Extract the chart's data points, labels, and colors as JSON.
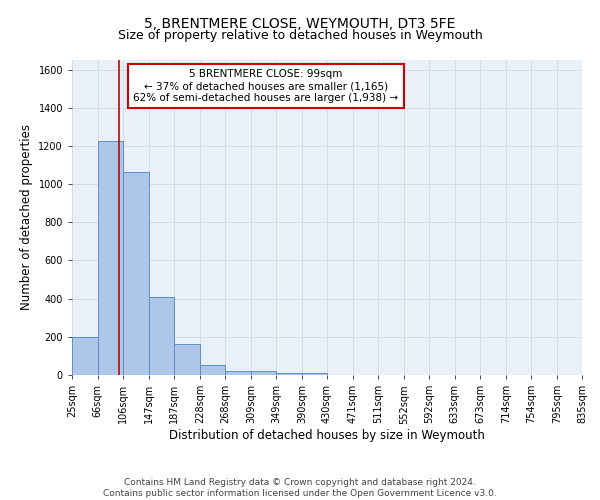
{
  "title": "5, BRENTMERE CLOSE, WEYMOUTH, DT3 5FE",
  "subtitle": "Size of property relative to detached houses in Weymouth",
  "xlabel": "Distribution of detached houses by size in Weymouth",
  "ylabel": "Number of detached properties",
  "footer_line1": "Contains HM Land Registry data © Crown copyright and database right 2024.",
  "footer_line2": "Contains public sector information licensed under the Open Government Licence v3.0.",
  "annotation_title": "5 BRENTMERE CLOSE: 99sqm",
  "annotation_line1": "← 37% of detached houses are smaller (1,165)",
  "annotation_line2": "62% of semi-detached houses are larger (1,938) →",
  "property_size_sqm": 99,
  "vline_x": 99,
  "bar_edges": [
    25,
    66,
    106,
    147,
    187,
    228,
    268,
    309,
    349,
    390,
    430,
    471,
    511,
    552,
    592,
    633,
    673,
    714,
    754,
    795,
    835
  ],
  "bar_heights": [
    200,
    1225,
    1065,
    410,
    165,
    50,
    22,
    20,
    12,
    12,
    0,
    0,
    0,
    0,
    0,
    0,
    0,
    0,
    0,
    0
  ],
  "bar_color": "#aec6e8",
  "bar_edge_color": "#5b8fc7",
  "vline_color": "#cc0000",
  "grid_color": "#d0d8e8",
  "bg_color": "#eaf0f8",
  "ylim": [
    0,
    1650
  ],
  "xlim": [
    25,
    835
  ],
  "title_fontsize": 10,
  "subtitle_fontsize": 9,
  "axis_label_fontsize": 8.5,
  "tick_fontsize": 7,
  "annotation_fontsize": 7.5,
  "footer_fontsize": 6.5
}
